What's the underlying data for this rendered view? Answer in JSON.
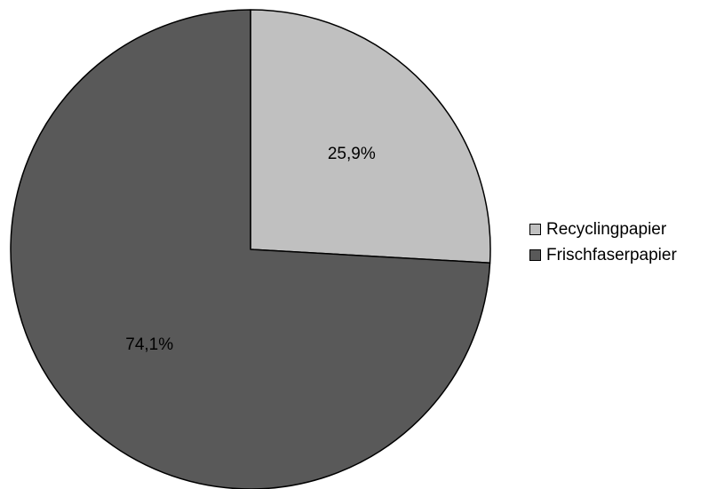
{
  "chart_data": {
    "type": "pie",
    "title": "",
    "start_angle_deg": 0,
    "direction": "clockwise",
    "legend_position": "right",
    "slices": [
      {
        "name": "Recyclingpapier",
        "value": 25.9,
        "label": "25,9%",
        "color": "#c0c0c0"
      },
      {
        "name": "Frischfaserpapier",
        "value": 74.1,
        "label": "74,1%",
        "color": "#595959"
      }
    ]
  }
}
